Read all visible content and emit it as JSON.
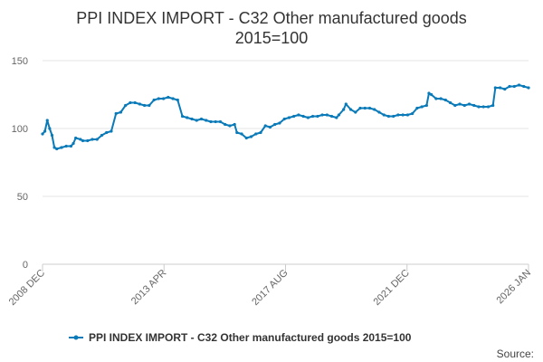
{
  "chart_data": {
    "type": "line",
    "title": "PPI INDEX IMPORT - C32 Other manufactured goods",
    "subtitle": "2015=100",
    "xlabel": "",
    "ylabel": "",
    "ylim": [
      0,
      150
    ],
    "yticks": [
      0,
      50,
      100,
      150
    ],
    "xticks": [
      "2008 DEC",
      "2013 APR",
      "2017 AUG",
      "2021 DEC",
      "2026 JAN"
    ],
    "x_range": [
      "2008-12",
      "2026-01"
    ],
    "grid": true,
    "legend_position": "bottom",
    "source_label": "Source:",
    "series": [
      {
        "name": "PPI INDEX IMPORT - C32 Other manufactured goods 2015=100",
        "color": "#0a7ab8",
        "points": [
          [
            "2008-12",
            96
          ],
          [
            "2009-01",
            98
          ],
          [
            "2009-02",
            106
          ],
          [
            "2009-03",
            100
          ],
          [
            "2009-04",
            95
          ],
          [
            "2009-05",
            86
          ],
          [
            "2009-06",
            85
          ],
          [
            "2009-08",
            86
          ],
          [
            "2009-10",
            87
          ],
          [
            "2009-12",
            87
          ],
          [
            "2010-01",
            89
          ],
          [
            "2010-02",
            93
          ],
          [
            "2010-04",
            92
          ],
          [
            "2010-05",
            91
          ],
          [
            "2010-07",
            91
          ],
          [
            "2010-09",
            92
          ],
          [
            "2010-11",
            92
          ],
          [
            "2011-01",
            95
          ],
          [
            "2011-03",
            97
          ],
          [
            "2011-05",
            98
          ],
          [
            "2011-07",
            111
          ],
          [
            "2011-09",
            112
          ],
          [
            "2011-11",
            117
          ],
          [
            "2012-01",
            119
          ],
          [
            "2012-03",
            119
          ],
          [
            "2012-05",
            118
          ],
          [
            "2012-07",
            117
          ],
          [
            "2012-09",
            117
          ],
          [
            "2012-11",
            121
          ],
          [
            "2013-01",
            122
          ],
          [
            "2013-03",
            122
          ],
          [
            "2013-05",
            123
          ],
          [
            "2013-07",
            122
          ],
          [
            "2013-09",
            121
          ],
          [
            "2013-11",
            109
          ],
          [
            "2014-01",
            108
          ],
          [
            "2014-03",
            107
          ],
          [
            "2014-05",
            106
          ],
          [
            "2014-07",
            107
          ],
          [
            "2014-09",
            106
          ],
          [
            "2014-11",
            105
          ],
          [
            "2015-01",
            105
          ],
          [
            "2015-03",
            105
          ],
          [
            "2015-05",
            103
          ],
          [
            "2015-07",
            102
          ],
          [
            "2015-09",
            103
          ],
          [
            "2015-10",
            97
          ],
          [
            "2015-12",
            96
          ],
          [
            "2016-02",
            93
          ],
          [
            "2016-04",
            94
          ],
          [
            "2016-06",
            96
          ],
          [
            "2016-08",
            97
          ],
          [
            "2016-10",
            102
          ],
          [
            "2016-12",
            101
          ],
          [
            "2017-02",
            103
          ],
          [
            "2017-04",
            104
          ],
          [
            "2017-06",
            107
          ],
          [
            "2017-08",
            108
          ],
          [
            "2017-10",
            109
          ],
          [
            "2017-12",
            110
          ],
          [
            "2018-02",
            109
          ],
          [
            "2018-04",
            108
          ],
          [
            "2018-06",
            109
          ],
          [
            "2018-08",
            109
          ],
          [
            "2018-10",
            110
          ],
          [
            "2018-12",
            110
          ],
          [
            "2019-02",
            109
          ],
          [
            "2019-04",
            108
          ],
          [
            "2019-05",
            110
          ],
          [
            "2019-07",
            114
          ],
          [
            "2019-08",
            118
          ],
          [
            "2019-10",
            114
          ],
          [
            "2019-12",
            112
          ],
          [
            "2020-02",
            115
          ],
          [
            "2020-04",
            115
          ],
          [
            "2020-06",
            115
          ],
          [
            "2020-08",
            114
          ],
          [
            "2020-10",
            112
          ],
          [
            "2020-12",
            110
          ],
          [
            "2021-02",
            109
          ],
          [
            "2021-04",
            109
          ],
          [
            "2021-06",
            110
          ],
          [
            "2021-08",
            110
          ],
          [
            "2021-10",
            110
          ],
          [
            "2021-12",
            111
          ],
          [
            "2022-02",
            115
          ],
          [
            "2022-04",
            116
          ],
          [
            "2022-06",
            117
          ],
          [
            "2022-07",
            126
          ],
          [
            "2022-08",
            125
          ],
          [
            "2022-10",
            122
          ],
          [
            "2022-12",
            122
          ],
          [
            "2023-02",
            121
          ],
          [
            "2023-04",
            119
          ],
          [
            "2023-06",
            117
          ],
          [
            "2023-08",
            118
          ],
          [
            "2023-10",
            117
          ],
          [
            "2023-12",
            118
          ],
          [
            "2024-02",
            117
          ],
          [
            "2024-04",
            116
          ],
          [
            "2024-06",
            116
          ],
          [
            "2024-08",
            116
          ],
          [
            "2024-10",
            117
          ],
          [
            "2024-11",
            130
          ],
          [
            "2025-01",
            130
          ],
          [
            "2025-03",
            129
          ],
          [
            "2025-05",
            131
          ],
          [
            "2025-07",
            131
          ],
          [
            "2025-09",
            132
          ],
          [
            "2025-11",
            131
          ],
          [
            "2026-01",
            130
          ]
        ]
      }
    ]
  }
}
